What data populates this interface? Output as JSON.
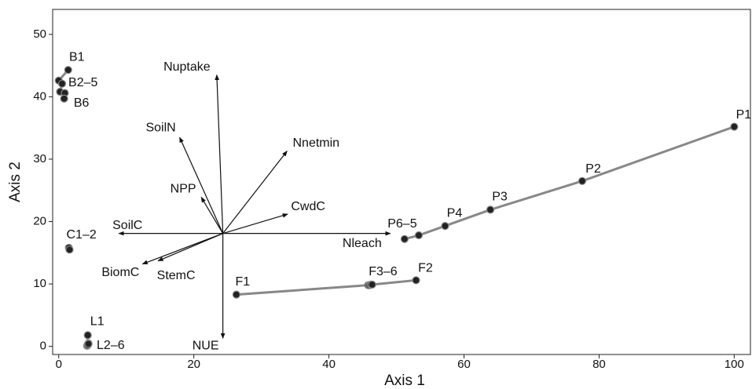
{
  "chart_data": {
    "type": "biplot",
    "x_label": "Axis 1",
    "y_label": "Axis 2",
    "xlim": [
      -0.9,
      102.4
    ],
    "ylim": [
      -1.3,
      54
    ],
    "xticks": [
      0,
      20,
      40,
      60,
      80,
      100
    ],
    "yticks": [
      0,
      10,
      20,
      30,
      40,
      50
    ],
    "grid": false,
    "line_color": "#888888",
    "point_color": "#222222",
    "arrow_color": "#111111",
    "groups": [
      {
        "x": [
          100,
          77.5,
          63.9,
          57.2,
          53.3,
          51.2
        ],
        "y": [
          35.2,
          26.5,
          21.9,
          19.3,
          17.8,
          17.2
        ],
        "labels": [
          "P1",
          "P2",
          "P3",
          "P4",
          "P6–5",
          null
        ]
      },
      {
        "x": [
          26.3,
          45.8,
          46.0,
          46.2,
          46.4,
          52.9
        ],
        "y": [
          8.3,
          9.8,
          9.8,
          9.9,
          9.9,
          10.6
        ],
        "labels": [
          "F1",
          "F3–6",
          null,
          null,
          null,
          "F2"
        ]
      },
      {
        "x": [
          1.4,
          0,
          0.5,
          0.2,
          0.9,
          0.8
        ],
        "y": [
          44.3,
          42.6,
          42.1,
          40.8,
          40.6,
          39.7
        ],
        "labels": [
          "B1",
          "B2–5",
          null,
          null,
          null,
          "B6"
        ]
      },
      {
        "x": [
          1.5,
          1.6
        ],
        "y": [
          15.8,
          15.5
        ],
        "labels": [
          "C1–2",
          null
        ]
      },
      {
        "x": [
          4.3,
          4.2,
          4.3,
          4.4,
          4.3,
          4.4
        ],
        "y": [
          1.8,
          0.1,
          0.3,
          0.5,
          0.2,
          0.4
        ],
        "labels": [
          "L1",
          "L2–6",
          null,
          null,
          null,
          null
        ]
      }
    ],
    "arrows": {
      "origin": [
        24.3,
        18.1
      ],
      "names": [
        "Nuptake",
        "SoilN",
        "Nnetmin",
        "NPP",
        "CwdC",
        "SoilC",
        "Nleach",
        "BiomC",
        "StemC",
        "NUE"
      ],
      "x": [
        23.4,
        17.9,
        33.8,
        21.1,
        33.9,
        8.9,
        49.1,
        12.4,
        14.7,
        24.3
      ],
      "y": [
        43.5,
        33.5,
        31.3,
        23.9,
        21.2,
        18.1,
        18.1,
        13.2,
        13.7,
        1.3
      ]
    }
  }
}
